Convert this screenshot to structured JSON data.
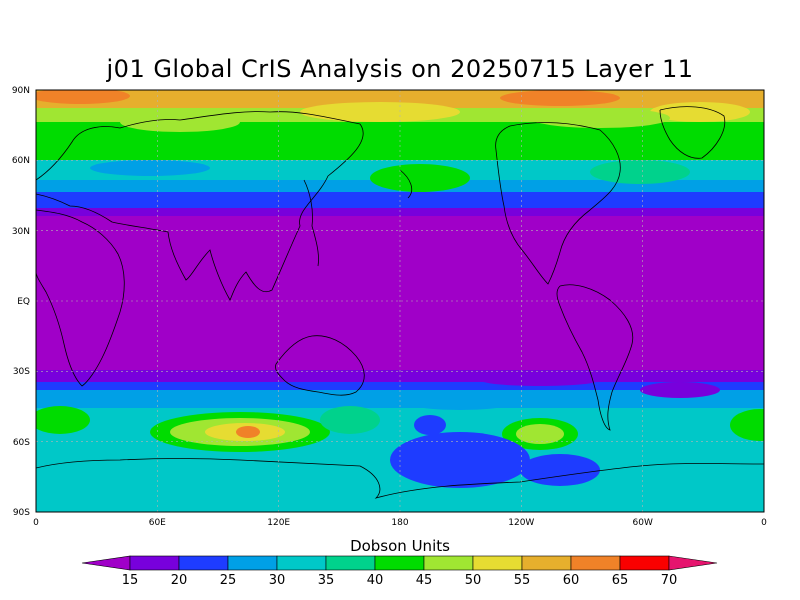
{
  "title": "j01 Global CrIS Analysis on 20250715 Layer 11",
  "map": {
    "lat_labels": [
      "90N",
      "60N",
      "30N",
      "EQ",
      "30S",
      "60S",
      "90S"
    ],
    "lon_labels": [
      "0",
      "60E",
      "120E",
      "180",
      "120W",
      "60W",
      "0"
    ]
  },
  "colorbar": {
    "title": "Dobson Units",
    "levels": [
      "15",
      "20",
      "25",
      "30",
      "35",
      "40",
      "45",
      "50",
      "55",
      "60",
      "65",
      "70"
    ],
    "colors": [
      "#a000c8",
      "#7800dc",
      "#1e3cff",
      "#00a0e6",
      "#00c8c8",
      "#00d28c",
      "#00dc00",
      "#a0e632",
      "#e6dc32",
      "#e6af2d",
      "#f08228",
      "#fa0000",
      "#e6146e"
    ]
  }
}
